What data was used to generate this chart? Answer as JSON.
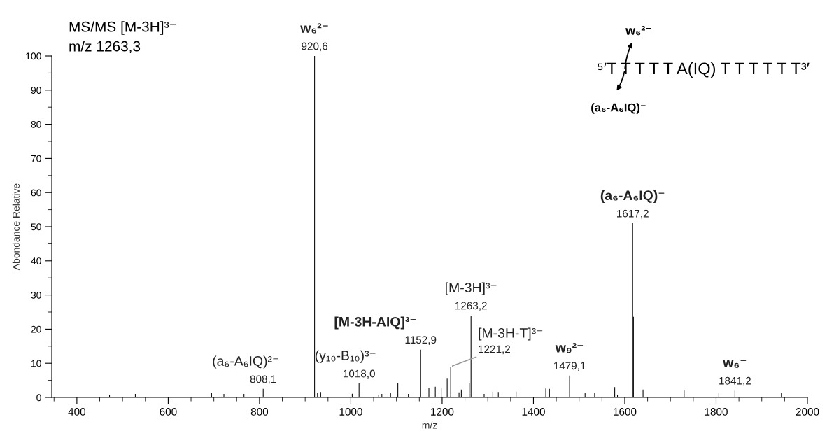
{
  "chart_data": {
    "type": "bar",
    "title": "MS/MS [M-3H]³⁻",
    "subtitle": "m/z 1263,3",
    "xlabel": "m/z",
    "ylabel": "Abondance Relative",
    "color": "#000000",
    "x": [
      471.5,
      528,
      695,
      722,
      766,
      808.1,
      920.6,
      927,
      934,
      1003,
      1018,
      1061,
      1068,
      1087,
      1103,
      1126,
      1152.9,
      1171,
      1185,
      1198,
      1211,
      1218.7,
      1237,
      1242,
      1259.5,
      1263.2,
      1292,
      1311,
      1323,
      1362,
      1427,
      1435,
      1479.1,
      1513,
      1534,
      1578,
      1584,
      1617.2,
      1619,
      1640,
      1730,
      1806,
      1841.2,
      1943
    ],
    "values": [
      0.8,
      1,
      1.3,
      1,
      1,
      2.5,
      100,
      1.3,
      1.6,
      1.1,
      4.1,
      0.6,
      1,
      1.3,
      4.1,
      1,
      14,
      2.8,
      3.1,
      2.6,
      5.7,
      9,
      1.5,
      2.3,
      4.2,
      24,
      1,
      1.7,
      1.6,
      1.7,
      2.6,
      2.5,
      6.4,
      1.3,
      1.3,
      3,
      0.8,
      51,
      23.6,
      2.3,
      2,
      1.4,
      2,
      1.4
    ],
    "xlim": [
      345,
      2000
    ],
    "xticks": [
      400,
      600,
      800,
      1000,
      1200,
      1400,
      1600,
      1800,
      2000
    ],
    "ylim": [
      0,
      100
    ],
    "yticks": [
      0,
      10,
      20,
      30,
      40,
      50,
      60,
      70,
      80,
      90,
      100
    ],
    "annotations": [
      {
        "text": "920,6",
        "x": 920.6,
        "y": 100
      },
      {
        "text": "w₆²⁻",
        "x": 920.6,
        "y": 100
      },
      {
        "text": "808,1",
        "x": 808.1,
        "y": 2.5
      },
      {
        "text": "(a₆-A₆IQ)²⁻",
        "x": 808.1,
        "y": 2.5
      },
      {
        "text": "1018,0",
        "x": 1018,
        "y": 4.1
      },
      {
        "text": "(y₁₀-B₁₀)³⁻",
        "x": 1018,
        "y": 4.1
      },
      {
        "text": "1152,9",
        "x": 1152.9,
        "y": 14
      },
      {
        "text": "[M-3H-AIQ]³⁻",
        "x": 1152.9,
        "y": 14
      },
      {
        "text": "1263,2",
        "x": 1263.2,
        "y": 24
      },
      {
        "text": "[M-3H]³⁻",
        "x": 1263.2,
        "y": 24
      },
      {
        "text": "1221,2",
        "x": 1218.7,
        "y": 9
      },
      {
        "text": "1479,1",
        "x": 1479.1,
        "y": 6.4
      },
      {
        "text": "w₉²⁻",
        "x": 1479.1,
        "y": 6.4
      },
      {
        "text": "1617,2",
        "x": 1617.2,
        "y": 51
      },
      {
        "text": "(a₆-A₆IQ)⁻",
        "x": 1617.2,
        "y": 51
      },
      {
        "text": "1841,2",
        "x": 1841.2,
        "y": 2
      },
      {
        "text": "w₆⁻",
        "x": 1841.2,
        "y": 2
      },
      "[M-3H-T]³⁻",
      "⁵′T T T T T A(IQ) T T T T T T³′",
      "w₆²⁻",
      "(a₆-A₆IQ)⁻"
    ]
  }
}
